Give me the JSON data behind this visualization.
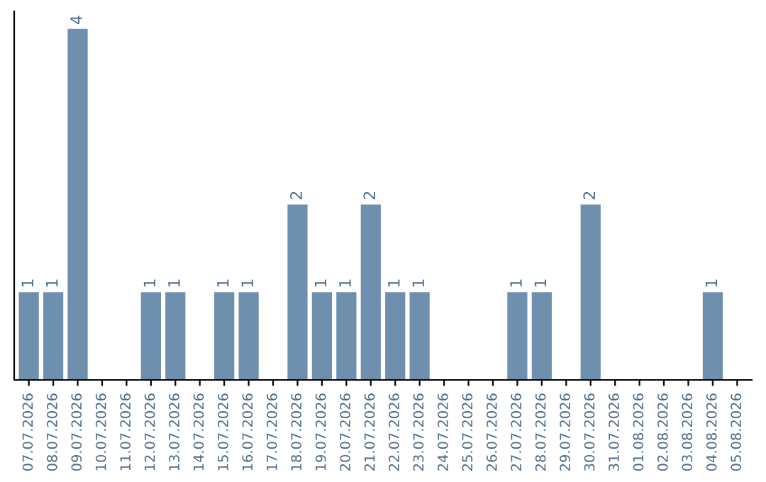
{
  "chart_data": {
    "type": "bar",
    "categories": [
      "07.07.2026",
      "08.07.2026",
      "09.07.2026",
      "10.07.2026",
      "11.07.2026",
      "12.07.2026",
      "13.07.2026",
      "14.07.2026",
      "15.07.2026",
      "16.07.2026",
      "17.07.2026",
      "18.07.2026",
      "19.07.2026",
      "20.07.2026",
      "21.07.2026",
      "22.07.2026",
      "23.07.2026",
      "24.07.2026",
      "25.07.2026",
      "26.07.2026",
      "27.07.2026",
      "28.07.2026",
      "29.07.2026",
      "30.07.2026",
      "31.07.2026",
      "01.08.2026",
      "02.08.2026",
      "03.08.2026",
      "04.08.2026",
      "05.08.2026"
    ],
    "values": [
      1,
      1,
      4,
      0,
      0,
      1,
      1,
      0,
      1,
      1,
      0,
      2,
      1,
      1,
      2,
      1,
      1,
      0,
      0,
      0,
      1,
      1,
      0,
      2,
      0,
      0,
      0,
      0,
      1,
      0
    ],
    "value_labels": [
      "1",
      "1",
      "4",
      null,
      null,
      "1",
      "1",
      null,
      "1",
      "1",
      null,
      "2",
      "1",
      "1",
      "2",
      "1",
      "1",
      null,
      null,
      null,
      "1",
      "1",
      null,
      "2",
      null,
      null,
      null,
      null,
      "1",
      null
    ],
    "color": "#6f8faf",
    "ylim": [
      0,
      4.2
    ],
    "grid": false,
    "legend": false
  }
}
